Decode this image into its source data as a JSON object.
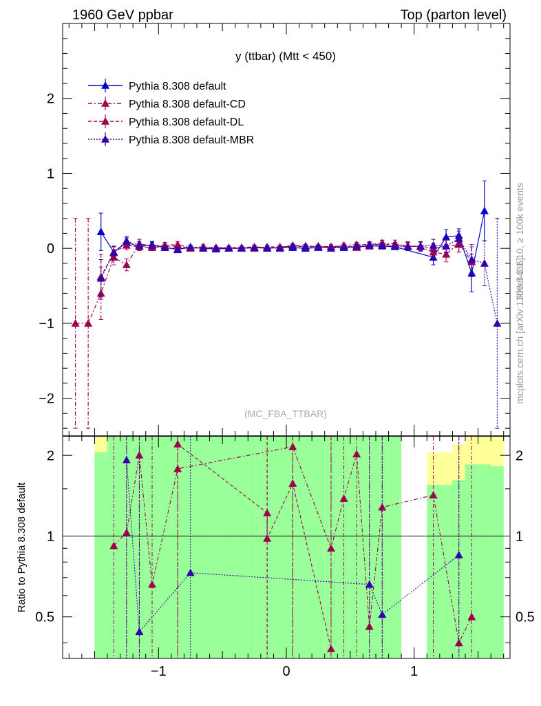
{
  "header": {
    "left": "1960 GeV ppbar",
    "right": "Top (parton level)"
  },
  "side": {
    "rivet": "Rivet 3.1.10, ≥ 100k events",
    "mcplots": "mcplots.cern.ch [arXiv:1306.3436]"
  },
  "chart_data": [
    {
      "type": "line",
      "title": "y (ttbar) (Mtt < 450)",
      "watermark": "(MC_FBA_TTBAR)",
      "xlim": [
        -1.75,
        1.75
      ],
      "ylim": [
        -2.5,
        3.0
      ],
      "y_ticks": [
        "−2",
        "−1",
        "0",
        "1",
        "2"
      ],
      "x_ticks": [
        "−1",
        "0",
        "1"
      ],
      "legend": [
        {
          "name": "Pythia 8.308 default",
          "color": "#0000cc",
          "dash": ""
        },
        {
          "name": "Pythia 8.308 default-CD",
          "color": "#a3004c",
          "dash": "6,3,2,3"
        },
        {
          "name": "Pythia 8.308 default-DL",
          "color": "#a3004c",
          "dash": "5,3"
        },
        {
          "name": "Pythia 8.308 default-MBR",
          "color": "#3300aa",
          "dash": "2,2"
        }
      ],
      "series": [
        {
          "name": "Pythia 8.308 default",
          "x": [
            -1.45,
            -1.35,
            -1.25,
            -1.15,
            -1.05,
            -0.95,
            -0.85,
            -0.75,
            -0.65,
            -0.55,
            -0.45,
            -0.35,
            -0.25,
            -0.15,
            -0.05,
            0.05,
            0.15,
            0.25,
            0.35,
            0.45,
            0.55,
            0.65,
            0.75,
            0.85,
            1.15,
            1.25,
            1.35,
            1.45,
            1.55
          ],
          "y": [
            0.22,
            -0.05,
            0.08,
            0.02,
            0.05,
            0.01,
            -0.01,
            0.01,
            0.0,
            -0.01,
            0.0,
            0.0,
            0.01,
            0.0,
            0.01,
            0.01,
            0.0,
            0.01,
            0.02,
            0.01,
            0.02,
            0.03,
            0.03,
            0.02,
            -0.12,
            0.15,
            0.17,
            -0.33,
            0.5
          ],
          "err": [
            0.25,
            0.08,
            0.06,
            0.04,
            0.04,
            0.03,
            0.03,
            0.02,
            0.02,
            0.02,
            0.02,
            0.02,
            0.02,
            0.02,
            0.02,
            0.02,
            0.02,
            0.02,
            0.02,
            0.02,
            0.02,
            0.03,
            0.03,
            0.03,
            0.1,
            0.1,
            0.09,
            0.25,
            0.4
          ]
        },
        {
          "name": "Pythia 8.308 default-CD",
          "x": [
            -1.65,
            -1.55,
            -1.45,
            -1.35,
            -1.25,
            -1.15,
            -1.05,
            -0.95,
            -0.85,
            -0.75,
            -0.65,
            -0.55,
            -0.45,
            -0.35,
            -0.25,
            -0.15,
            -0.05,
            0.05,
            0.15,
            0.25,
            0.35,
            0.45,
            0.55,
            0.65,
            0.75,
            0.85,
            0.95,
            1.05,
            1.15,
            1.25,
            1.35,
            1.45
          ],
          "y": [
            -1.0,
            -1.0,
            -0.6,
            -0.12,
            -0.22,
            0.06,
            0.03,
            0.04,
            0.05,
            0.01,
            0.02,
            0.01,
            0.01,
            0.01,
            0.02,
            0.01,
            0.01,
            0.04,
            0.03,
            0.03,
            0.02,
            0.04,
            0.05,
            0.05,
            0.07,
            0.06,
            0.03,
            0.02,
            -0.05,
            -0.08,
            0.07,
            -0.18
          ],
          "err": [
            1.4,
            1.4,
            0.35,
            0.1,
            0.08,
            0.06,
            0.05,
            0.04,
            0.04,
            0.03,
            0.03,
            0.02,
            0.02,
            0.02,
            0.02,
            0.02,
            0.02,
            0.02,
            0.02,
            0.02,
            0.03,
            0.03,
            0.03,
            0.04,
            0.04,
            0.05,
            0.06,
            0.06,
            0.08,
            0.1,
            0.12,
            0.2
          ]
        },
        {
          "name": "Pythia 8.308 default-DL",
          "x": [
            -1.45,
            -1.35,
            -1.25,
            -1.15,
            -1.05,
            -0.95,
            -0.85,
            -0.75,
            -0.65,
            -0.55,
            -0.45,
            -0.35,
            -0.25,
            -0.15,
            -0.05,
            0.05,
            0.15,
            0.25,
            0.35,
            0.45,
            0.55,
            0.65,
            0.75,
            0.85,
            0.95,
            1.05,
            1.15,
            1.25,
            1.35
          ],
          "y": [
            -0.38,
            -0.05,
            0.04,
            0.02,
            0.01,
            0.03,
            0.03,
            0.0,
            0.01,
            0.0,
            0.01,
            0.01,
            0.0,
            0.02,
            0.02,
            0.03,
            0.02,
            0.02,
            0.02,
            0.03,
            0.01,
            0.04,
            0.06,
            0.04,
            0.03,
            0.03,
            0.0,
            0.03,
            0.05
          ],
          "err": [
            0.3,
            0.08,
            0.06,
            0.05,
            0.04,
            0.03,
            0.03,
            0.02,
            0.02,
            0.02,
            0.02,
            0.02,
            0.02,
            0.02,
            0.02,
            0.02,
            0.02,
            0.02,
            0.02,
            0.02,
            0.03,
            0.03,
            0.04,
            0.04,
            0.05,
            0.06,
            0.07,
            0.08,
            0.1
          ]
        },
        {
          "name": "Pythia 8.308 default-MBR",
          "x": [
            -1.45,
            -1.35,
            -1.25,
            -1.15,
            -1.05,
            -0.95,
            -0.85,
            -0.75,
            -0.65,
            -0.55,
            -0.45,
            -0.35,
            -0.25,
            -0.15,
            -0.05,
            0.05,
            0.15,
            0.25,
            0.35,
            0.45,
            0.55,
            0.65,
            0.75,
            0.85,
            0.95,
            1.05,
            1.15,
            1.25,
            1.35,
            1.45,
            1.55,
            1.65
          ],
          "y": [
            -0.4,
            -0.06,
            0.1,
            0.04,
            0.04,
            0.01,
            -0.02,
            0.02,
            0.0,
            0.0,
            0.0,
            0.0,
            0.01,
            0.01,
            0.0,
            0.03,
            0.03,
            0.02,
            0.0,
            0.02,
            0.03,
            0.05,
            0.04,
            0.03,
            0.02,
            0.03,
            0.04,
            0.03,
            0.13,
            -0.15,
            -0.2,
            -1.0
          ],
          "err": [
            0.25,
            0.08,
            0.06,
            0.05,
            0.04,
            0.03,
            0.03,
            0.02,
            0.02,
            0.02,
            0.02,
            0.02,
            0.02,
            0.02,
            0.02,
            0.02,
            0.02,
            0.02,
            0.02,
            0.02,
            0.03,
            0.03,
            0.04,
            0.04,
            0.05,
            0.06,
            0.08,
            0.09,
            0.1,
            0.2,
            0.3,
            1.4
          ]
        }
      ]
    },
    {
      "type": "line",
      "ylabel": "Ratio to Pythia 8.308 default",
      "xlim": [
        -1.75,
        1.75
      ],
      "ylim": [
        0.35,
        2.35
      ],
      "y_ticks": [
        "0.5",
        "1",
        "2"
      ],
      "x_ticks": [
        "−1",
        "0",
        "1"
      ],
      "band_x": [
        -1.5,
        -1.4,
        -1.3,
        -1.2,
        -1.1,
        -1.0,
        -0.9,
        -0.8,
        -0.7,
        -0.6,
        -0.5,
        -0.4,
        -0.3,
        -0.2,
        -0.1,
        0.0,
        0.1,
        0.2,
        0.3,
        0.4,
        0.5,
        0.6,
        0.7,
        0.8,
        0.9,
        1.1,
        1.2,
        1.3,
        1.4,
        1.5,
        1.6
      ],
      "band_green_hi": [
        2.05,
        2.35,
        2.35,
        2.35,
        2.35,
        2.35,
        2.35,
        2.35,
        2.35,
        2.35,
        2.35,
        2.35,
        2.35,
        2.35,
        2.35,
        2.35,
        2.35,
        2.35,
        2.35,
        2.35,
        2.35,
        2.35,
        2.35,
        2.35,
        0.35,
        1.55,
        1.55,
        1.62,
        1.85,
        1.85,
        1.82
      ],
      "band_yellow_hi": [
        2.35,
        2.35,
        2.35,
        2.35,
        2.35,
        2.35,
        2.35,
        2.35,
        2.35,
        2.35,
        2.35,
        2.35,
        2.35,
        2.35,
        2.35,
        2.35,
        2.35,
        2.35,
        2.35,
        2.35,
        2.35,
        2.35,
        2.35,
        2.35,
        0.35,
        2.05,
        2.05,
        2.2,
        2.35,
        2.35,
        2.35
      ],
      "series": [
        {
          "name": "Pythia 8.308 default-CD",
          "x": [
            -1.35,
            -1.25,
            -1.15,
            -1.05,
            -0.85,
            0.05,
            0.35,
            0.45,
            0.55,
            0.65,
            0.75,
            1.15,
            1.35,
            1.45
          ],
          "y": [
            0.92,
            1.03,
            2.0,
            0.66,
            1.78,
            2.15,
            0.9,
            1.38,
            2.02,
            0.46,
            1.28,
            1.42,
            0.4,
            0.5
          ]
        },
        {
          "name": "Pythia 8.308 default-DL",
          "x": [
            -0.85,
            -0.15,
            -0.15,
            0.05,
            0.35
          ],
          "y": [
            2.2,
            1.22,
            0.98,
            1.57,
            0.38
          ]
        },
        {
          "name": "Pythia 8.308 default-MBR",
          "x": [
            -1.25,
            -1.15,
            -0.75,
            0.65,
            0.75,
            1.35
          ],
          "y": [
            1.92,
            0.44,
            0.73,
            0.66,
            0.51,
            0.85
          ]
        }
      ]
    }
  ]
}
